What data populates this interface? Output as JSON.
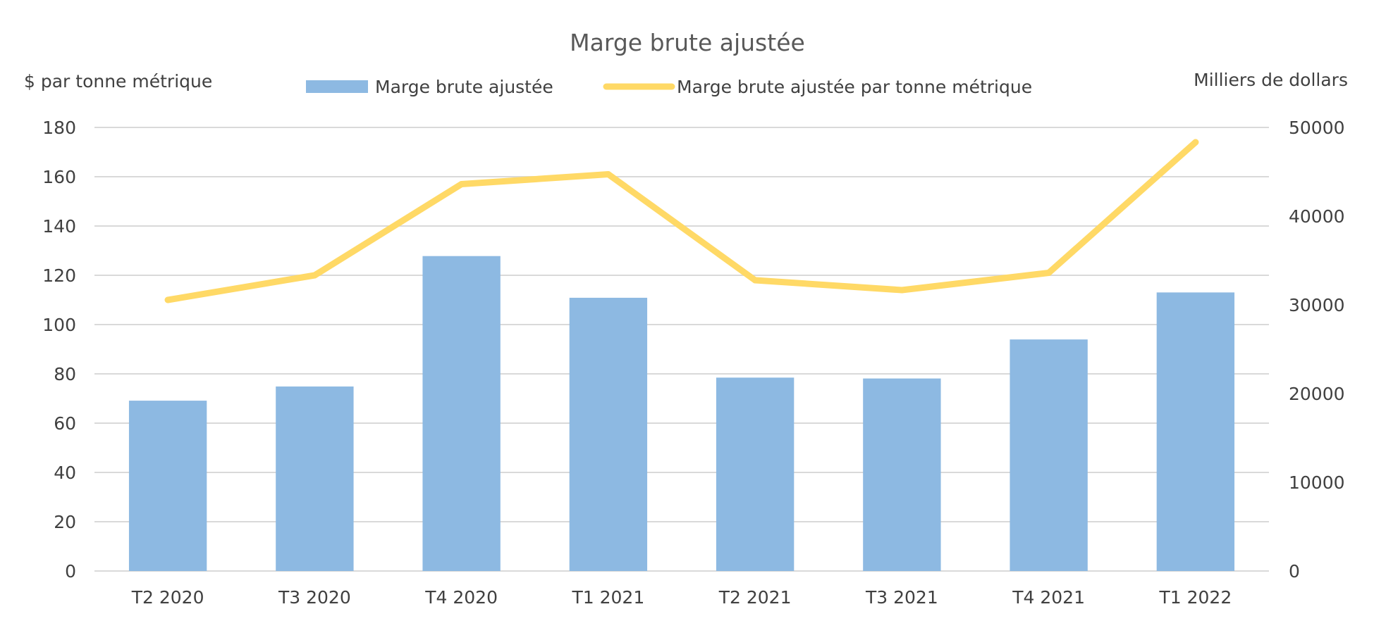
{
  "chart_data": {
    "type": "bar",
    "title": "Marge brute ajustée",
    "categories": [
      "T2 2020",
      "T3 2020",
      "T4 2020",
      "T1 2021",
      "T2 2021",
      "T3 2021",
      "T4 2021",
      "T1 2022"
    ],
    "series": [
      {
        "name": "Marge brute ajustée",
        "type": "bar",
        "axis": "right",
        "color": "#8db9e2",
        "values": [
          19200,
          20800,
          35500,
          30800,
          21800,
          21700,
          26100,
          31400
        ]
      },
      {
        "name": "Marge brute ajustée par tonne métrique",
        "type": "line",
        "axis": "left",
        "color": "#ffd966",
        "values": [
          110,
          120,
          157,
          161,
          118,
          114,
          121,
          174
        ]
      }
    ],
    "y_left": {
      "label": "$ par tonne métrique",
      "ylim": [
        0,
        180
      ],
      "ticks": [
        "0",
        "20",
        "40",
        "60",
        "80",
        "100",
        "120",
        "140",
        "160",
        "180"
      ]
    },
    "y_right": {
      "label": "Milliers de dollars",
      "ylim": [
        0,
        50000
      ],
      "ticks": [
        "0",
        "10000",
        "20000",
        "30000",
        "40000",
        "50000"
      ]
    },
    "grid": true,
    "legend_position": "top"
  }
}
